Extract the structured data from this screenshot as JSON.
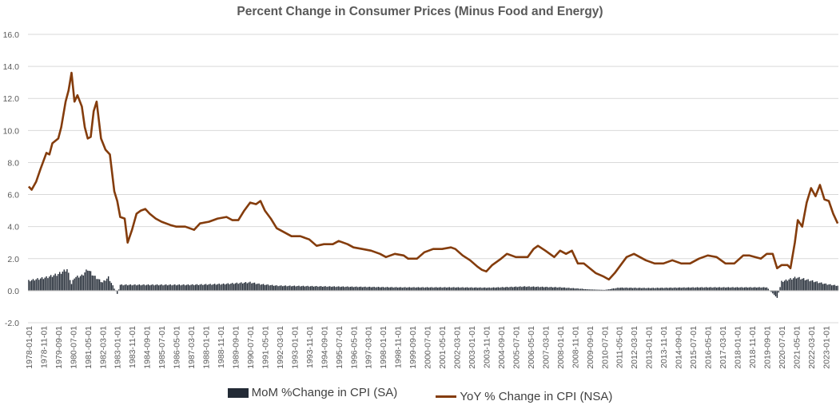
{
  "chart_data": {
    "type": "bar+line",
    "title": "Percent Change in Consumer Prices (Minus Food and Energy)",
    "y_ticks": [
      "16.0",
      "14.0",
      "12.0",
      "10.0",
      "8.0",
      "6.0",
      "4.0",
      "2.0",
      "0.0",
      "-2.0"
    ],
    "ylim": [
      -2,
      16
    ],
    "x_start": "1978-01",
    "x_end": "2023-09",
    "x_tick_labels": [
      "1978-01-01",
      "1978-11-01",
      "1979-09-01",
      "1980-07-01",
      "1981-05-01",
      "1982-03-01",
      "1983-01-01",
      "1983-11-01",
      "1984-09-01",
      "1985-07-01",
      "1986-05-01",
      "1987-03-01",
      "1988-01-01",
      "1988-11-01",
      "1989-09-01",
      "1990-07-01",
      "1991-05-01",
      "1992-03-01",
      "1993-01-01",
      "1993-11-01",
      "1994-09-01",
      "1995-07-01",
      "1996-05-01",
      "1997-03-01",
      "1998-01-01",
      "1998-11-01",
      "1999-09-01",
      "2000-07-01",
      "2001-05-01",
      "2002-03-01",
      "2003-01-01",
      "2003-11-01",
      "2004-09-01",
      "2005-07-01",
      "2006-05-01",
      "2007-03-01",
      "2008-01-01",
      "2008-11-01",
      "2009-09-01",
      "2010-07-01",
      "2011-05-01",
      "2012-03-01",
      "2013-01-01",
      "2013-11-01",
      "2014-09-01",
      "2015-07-01",
      "2016-05-01",
      "2017-03-01",
      "2018-01-01",
      "2018-11-01",
      "2019-09-01",
      "2020-07-01",
      "2021-05-01",
      "2022-03-01",
      "2023-01-01"
    ],
    "grid": true,
    "legend_position": "bottom",
    "series": [
      {
        "name": "MoM %Change in CPI (SA)",
        "kind": "bar",
        "color": "#222a35",
        "anchors": [
          [
            "1978-01",
            0.6
          ],
          [
            "1979-01",
            0.8
          ],
          [
            "1979-09",
            1.0
          ],
          [
            "1980-03",
            1.3
          ],
          [
            "1980-06",
            0.4
          ],
          [
            "1980-08",
            0.8
          ],
          [
            "1981-01",
            0.9
          ],
          [
            "1981-05",
            1.3
          ],
          [
            "1981-09",
            0.9
          ],
          [
            "1982-03",
            0.5
          ],
          [
            "1982-07",
            0.8
          ],
          [
            "1983-01",
            -0.2
          ],
          [
            "1983-03",
            0.35
          ],
          [
            "1985-01",
            0.35
          ],
          [
            "1987-01",
            0.35
          ],
          [
            "1989-01",
            0.4
          ],
          [
            "1990-07",
            0.5
          ],
          [
            "1991-01",
            0.4
          ],
          [
            "1992-01",
            0.3
          ],
          [
            "1995-01",
            0.25
          ],
          [
            "1999-01",
            0.2
          ],
          [
            "2002-01",
            0.2
          ],
          [
            "2004-01",
            0.18
          ],
          [
            "2006-01",
            0.25
          ],
          [
            "2008-01",
            0.2
          ],
          [
            "2009-09",
            0.08
          ],
          [
            "2010-07",
            0.05
          ],
          [
            "2011-05",
            0.18
          ],
          [
            "2013-01",
            0.16
          ],
          [
            "2016-01",
            0.2
          ],
          [
            "2019-09",
            0.2
          ],
          [
            "2020-04",
            -0.45
          ],
          [
            "2020-07",
            0.55
          ],
          [
            "2021-05",
            0.8
          ],
          [
            "2022-03",
            0.6
          ],
          [
            "2023-01",
            0.4
          ],
          [
            "2023-09",
            0.3
          ]
        ]
      },
      {
        "name": "YoY % Change in CPI (NSA)",
        "kind": "line",
        "color": "#843c0c",
        "points": [
          [
            "1978-01",
            6.5
          ],
          [
            "1978-03",
            6.3
          ],
          [
            "1978-06",
            6.8
          ],
          [
            "1978-09",
            7.6
          ],
          [
            "1979-01",
            8.6
          ],
          [
            "1979-03",
            8.5
          ],
          [
            "1979-05",
            9.2
          ],
          [
            "1979-09",
            9.5
          ],
          [
            "1979-11",
            10.2
          ],
          [
            "1980-02",
            11.8
          ],
          [
            "1980-04",
            12.5
          ],
          [
            "1980-06",
            13.6
          ],
          [
            "1980-08",
            11.8
          ],
          [
            "1980-10",
            12.2
          ],
          [
            "1981-01",
            11.5
          ],
          [
            "1981-03",
            10.2
          ],
          [
            "1981-05",
            9.5
          ],
          [
            "1981-07",
            9.6
          ],
          [
            "1981-09",
            11.2
          ],
          [
            "1981-11",
            11.8
          ],
          [
            "1982-02",
            9.5
          ],
          [
            "1982-05",
            8.8
          ],
          [
            "1982-08",
            8.5
          ],
          [
            "1982-11",
            6.2
          ],
          [
            "1983-01",
            5.6
          ],
          [
            "1983-03",
            4.6
          ],
          [
            "1983-06",
            4.5
          ],
          [
            "1983-08",
            3.0
          ],
          [
            "1983-11",
            3.8
          ],
          [
            "1984-02",
            4.8
          ],
          [
            "1984-05",
            5.0
          ],
          [
            "1984-08",
            5.1
          ],
          [
            "1984-11",
            4.8
          ],
          [
            "1985-03",
            4.5
          ],
          [
            "1985-07",
            4.3
          ],
          [
            "1986-01",
            4.1
          ],
          [
            "1986-05",
            4.0
          ],
          [
            "1986-11",
            4.0
          ],
          [
            "1987-05",
            3.8
          ],
          [
            "1987-09",
            4.2
          ],
          [
            "1988-03",
            4.3
          ],
          [
            "1988-09",
            4.5
          ],
          [
            "1989-03",
            4.6
          ],
          [
            "1989-07",
            4.4
          ],
          [
            "1989-11",
            4.4
          ],
          [
            "1990-03",
            5.0
          ],
          [
            "1990-07",
            5.5
          ],
          [
            "1990-11",
            5.4
          ],
          [
            "1991-02",
            5.6
          ],
          [
            "1991-05",
            5.0
          ],
          [
            "1991-09",
            4.5
          ],
          [
            "1992-01",
            3.9
          ],
          [
            "1992-05",
            3.7
          ],
          [
            "1992-11",
            3.4
          ],
          [
            "1993-05",
            3.4
          ],
          [
            "1993-11",
            3.2
          ],
          [
            "1994-04",
            2.8
          ],
          [
            "1994-09",
            2.9
          ],
          [
            "1995-03",
            2.9
          ],
          [
            "1995-07",
            3.1
          ],
          [
            "1996-01",
            2.9
          ],
          [
            "1996-05",
            2.7
          ],
          [
            "1996-11",
            2.6
          ],
          [
            "1997-05",
            2.5
          ],
          [
            "1997-11",
            2.3
          ],
          [
            "1998-03",
            2.1
          ],
          [
            "1998-09",
            2.3
          ],
          [
            "1999-03",
            2.2
          ],
          [
            "1999-06",
            2.0
          ],
          [
            "1999-12",
            2.0
          ],
          [
            "2000-05",
            2.4
          ],
          [
            "2000-11",
            2.6
          ],
          [
            "2001-05",
            2.6
          ],
          [
            "2001-11",
            2.7
          ],
          [
            "2002-02",
            2.6
          ],
          [
            "2002-07",
            2.2
          ],
          [
            "2002-12",
            1.9
          ],
          [
            "2003-05",
            1.5
          ],
          [
            "2003-08",
            1.3
          ],
          [
            "2003-11",
            1.2
          ],
          [
            "2004-03",
            1.6
          ],
          [
            "2004-09",
            2.0
          ],
          [
            "2005-01",
            2.3
          ],
          [
            "2005-07",
            2.1
          ],
          [
            "2005-11",
            2.1
          ],
          [
            "2006-03",
            2.1
          ],
          [
            "2006-07",
            2.6
          ],
          [
            "2006-10",
            2.8
          ],
          [
            "2007-03",
            2.5
          ],
          [
            "2007-09",
            2.1
          ],
          [
            "2008-01",
            2.5
          ],
          [
            "2008-05",
            2.3
          ],
          [
            "2008-09",
            2.5
          ],
          [
            "2009-01",
            1.7
          ],
          [
            "2009-05",
            1.7
          ],
          [
            "2009-09",
            1.4
          ],
          [
            "2010-01",
            1.1
          ],
          [
            "2010-06",
            0.9
          ],
          [
            "2010-10",
            0.7
          ],
          [
            "2011-02",
            1.1
          ],
          [
            "2011-06",
            1.6
          ],
          [
            "2011-10",
            2.1
          ],
          [
            "2012-03",
            2.3
          ],
          [
            "2012-07",
            2.1
          ],
          [
            "2012-11",
            1.9
          ],
          [
            "2013-05",
            1.7
          ],
          [
            "2013-11",
            1.7
          ],
          [
            "2014-05",
            1.9
          ],
          [
            "2014-11",
            1.7
          ],
          [
            "2015-05",
            1.7
          ],
          [
            "2015-11",
            2.0
          ],
          [
            "2016-05",
            2.2
          ],
          [
            "2016-11",
            2.1
          ],
          [
            "2017-05",
            1.7
          ],
          [
            "2017-11",
            1.7
          ],
          [
            "2018-05",
            2.2
          ],
          [
            "2018-09",
            2.2
          ],
          [
            "2019-01",
            2.1
          ],
          [
            "2019-05",
            2.0
          ],
          [
            "2019-09",
            2.3
          ],
          [
            "2020-01",
            2.3
          ],
          [
            "2020-04",
            1.4
          ],
          [
            "2020-07",
            1.6
          ],
          [
            "2020-11",
            1.6
          ],
          [
            "2021-01",
            1.4
          ],
          [
            "2021-04",
            3.0
          ],
          [
            "2021-06",
            4.4
          ],
          [
            "2021-09",
            4.0
          ],
          [
            "2021-12",
            5.5
          ],
          [
            "2022-03",
            6.4
          ],
          [
            "2022-06",
            5.9
          ],
          [
            "2022-09",
            6.6
          ],
          [
            "2022-12",
            5.7
          ],
          [
            "2023-03",
            5.6
          ],
          [
            "2023-06",
            4.8
          ],
          [
            "2023-09",
            4.2
          ]
        ]
      }
    ]
  }
}
